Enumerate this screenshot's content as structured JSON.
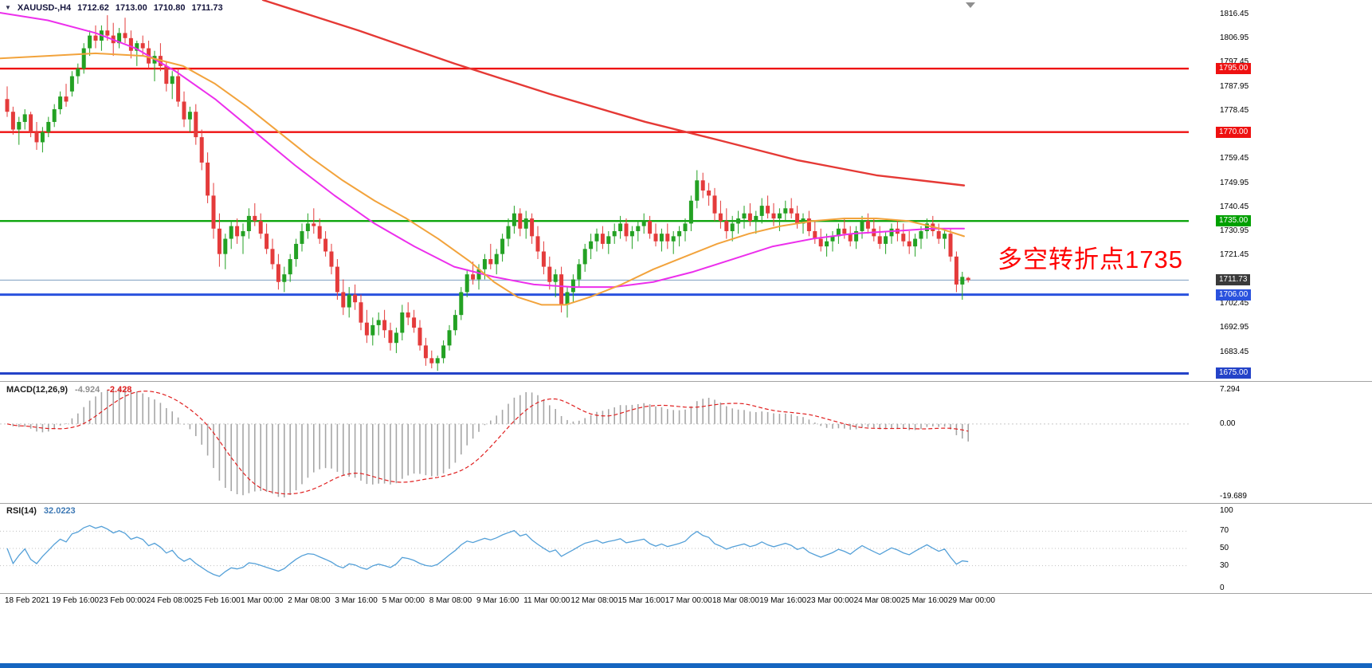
{
  "quote_bar": {
    "collapse_icon_glyph": "▼",
    "symbol": "XAUUSD-,H4",
    "open": "1712.62",
    "high": "1713.00",
    "low": "1710.80",
    "close": "1711.73"
  },
  "annotation": {
    "text": "多空转折点1735",
    "color": "#ff0000"
  },
  "indicators": {
    "macd": {
      "label": "MACD(12,26,9)",
      "value_main": "-4.924",
      "value_signal": "-2.428",
      "scale_labels": [
        "7.294",
        "0.00",
        "-19.689"
      ],
      "histogram_color": "#a6a6a6",
      "signal_color": "#e02020",
      "params": {
        "fast": 12,
        "slow": 26,
        "signal": 9
      }
    },
    "rsi": {
      "label": "RSI(14)",
      "value": "32.0223",
      "scale_labels": [
        "100",
        "70",
        "50",
        "30",
        "0"
      ],
      "levels": [
        70,
        50,
        30
      ],
      "line_color": "#54a0d8",
      "period": 14
    }
  },
  "price_axis": {
    "tick_labels": [
      "1816.45",
      "1806.95",
      "1797.45",
      "1787.95",
      "1778.45",
      "1768.95",
      "1759.45",
      "1749.95",
      "1740.45",
      "1730.95",
      "1721.45",
      "1711.95",
      "1702.45",
      "1692.95",
      "1683.45"
    ]
  },
  "chart_data": {
    "type": "candlestick",
    "symbol": "XAUUSD-",
    "timeframe": "H4",
    "ylim": [
      1672,
      1822
    ],
    "candles_per_label": 8,
    "up_color": "#23a123",
    "down_color": "#e43b3b",
    "x_labels": [
      "18 Feb 2021",
      "19 Feb 16:00",
      "23 Feb 00:00",
      "24 Feb 08:00",
      "25 Feb 16:00",
      "1 Mar 00:00",
      "2 Mar 08:00",
      "3 Mar 16:00",
      "5 Mar 00:00",
      "8 Mar 08:00",
      "9 Mar 16:00",
      "11 Mar 00:00",
      "12 Mar 08:00",
      "15 Mar 16:00",
      "17 Mar 00:00",
      "18 Mar 08:00",
      "19 Mar 16:00",
      "23 Mar 00:00",
      "24 Mar 08:00",
      "25 Mar 16:00",
      "29 Mar 00:00"
    ],
    "ohlc": [
      [
        1783,
        1788,
        1776,
        1778
      ],
      [
        1778,
        1780,
        1769,
        1771
      ],
      [
        1771,
        1776,
        1765,
        1774
      ],
      [
        1774,
        1779,
        1771,
        1777
      ],
      [
        1777,
        1778,
        1768,
        1770
      ],
      [
        1770,
        1774,
        1763,
        1766
      ],
      [
        1766,
        1772,
        1762,
        1770
      ],
      [
        1770,
        1776,
        1768,
        1774
      ],
      [
        1774,
        1781,
        1772,
        1779
      ],
      [
        1779,
        1786,
        1777,
        1784
      ],
      [
        1784,
        1789,
        1780,
        1782
      ],
      [
        1786,
        1794,
        1784,
        1792
      ],
      [
        1792,
        1797,
        1789,
        1795
      ],
      [
        1795,
        1805,
        1793,
        1803
      ],
      [
        1803,
        1810,
        1800,
        1808
      ],
      [
        1808,
        1812,
        1803,
        1806
      ],
      [
        1806,
        1812,
        1802,
        1810
      ],
      [
        1810,
        1816,
        1806,
        1808
      ],
      [
        1808,
        1813,
        1800,
        1805
      ],
      [
        1805,
        1811,
        1803,
        1809
      ],
      [
        1809,
        1815,
        1805,
        1807
      ],
      [
        1807,
        1810,
        1799,
        1802
      ],
      [
        1802,
        1806,
        1796,
        1805
      ],
      [
        1805,
        1808,
        1800,
        1803
      ],
      [
        1803,
        1806,
        1795,
        1797
      ],
      [
        1797,
        1802,
        1790,
        1800
      ],
      [
        1800,
        1805,
        1794,
        1796
      ],
      [
        1796,
        1798,
        1786,
        1789
      ],
      [
        1789,
        1794,
        1783,
        1792
      ],
      [
        1792,
        1795,
        1780,
        1782
      ],
      [
        1782,
        1786,
        1772,
        1775
      ],
      [
        1775,
        1780,
        1770,
        1778
      ],
      [
        1778,
        1781,
        1765,
        1768
      ],
      [
        1768,
        1771,
        1755,
        1758
      ],
      [
        1758,
        1762,
        1742,
        1745
      ],
      [
        1745,
        1750,
        1728,
        1732
      ],
      [
        1732,
        1738,
        1717,
        1722
      ],
      [
        1722,
        1730,
        1716,
        1728
      ],
      [
        1728,
        1735,
        1724,
        1733
      ],
      [
        1733,
        1736,
        1726,
        1729
      ],
      [
        1729,
        1734,
        1722,
        1731
      ],
      [
        1731,
        1740,
        1728,
        1737
      ],
      [
        1737,
        1742,
        1733,
        1735
      ],
      [
        1735,
        1738,
        1728,
        1730
      ],
      [
        1730,
        1734,
        1722,
        1724
      ],
      [
        1724,
        1728,
        1716,
        1718
      ],
      [
        1718,
        1722,
        1708,
        1711
      ],
      [
        1711,
        1717,
        1707,
        1714
      ],
      [
        1714,
        1722,
        1711,
        1720
      ],
      [
        1720,
        1728,
        1717,
        1726
      ],
      [
        1726,
        1734,
        1723,
        1731
      ],
      [
        1731,
        1738,
        1728,
        1734
      ],
      [
        1734,
        1740,
        1730,
        1733
      ],
      [
        1733,
        1736,
        1726,
        1728
      ],
      [
        1728,
        1731,
        1721,
        1723
      ],
      [
        1723,
        1726,
        1714,
        1717
      ],
      [
        1717,
        1720,
        1704,
        1707
      ],
      [
        1707,
        1712,
        1698,
        1701
      ],
      [
        1701,
        1709,
        1697,
        1706
      ],
      [
        1706,
        1710,
        1700,
        1703
      ],
      [
        1703,
        1706,
        1692,
        1695
      ],
      [
        1695,
        1700,
        1687,
        1690
      ],
      [
        1690,
        1697,
        1686,
        1694
      ],
      [
        1694,
        1699,
        1690,
        1696
      ],
      [
        1696,
        1700,
        1689,
        1692
      ],
      [
        1692,
        1695,
        1684,
        1687
      ],
      [
        1687,
        1693,
        1683,
        1691
      ],
      [
        1691,
        1702,
        1688,
        1699
      ],
      [
        1699,
        1703,
        1694,
        1697
      ],
      [
        1697,
        1700,
        1691,
        1693
      ],
      [
        1693,
        1696,
        1684,
        1686
      ],
      [
        1686,
        1689,
        1678,
        1681
      ],
      [
        1681,
        1684,
        1677,
        1679
      ],
      [
        1679,
        1682,
        1676,
        1681
      ],
      [
        1681,
        1688,
        1679,
        1686
      ],
      [
        1686,
        1694,
        1684,
        1692
      ],
      [
        1692,
        1700,
        1690,
        1698
      ],
      [
        1698,
        1709,
        1696,
        1707
      ],
      [
        1707,
        1716,
        1705,
        1714
      ],
      [
        1714,
        1719,
        1710,
        1712
      ],
      [
        1712,
        1718,
        1708,
        1716
      ],
      [
        1716,
        1722,
        1712,
        1720
      ],
      [
        1720,
        1726,
        1716,
        1718
      ],
      [
        1718,
        1724,
        1714,
        1722
      ],
      [
        1722,
        1730,
        1719,
        1728
      ],
      [
        1728,
        1736,
        1725,
        1733
      ],
      [
        1733,
        1741,
        1730,
        1738
      ],
      [
        1738,
        1740,
        1729,
        1732
      ],
      [
        1732,
        1739,
        1728,
        1736
      ],
      [
        1736,
        1738,
        1726,
        1729
      ],
      [
        1729,
        1733,
        1720,
        1723
      ],
      [
        1723,
        1727,
        1714,
        1717
      ],
      [
        1717,
        1721,
        1708,
        1711
      ],
      [
        1711,
        1716,
        1705,
        1714
      ],
      [
        1714,
        1717,
        1699,
        1702
      ],
      [
        1702,
        1709,
        1697,
        1707
      ],
      [
        1707,
        1714,
        1703,
        1712
      ],
      [
        1712,
        1720,
        1709,
        1718
      ],
      [
        1718,
        1726,
        1715,
        1724
      ],
      [
        1724,
        1730,
        1720,
        1727
      ],
      [
        1727,
        1732,
        1723,
        1730
      ],
      [
        1730,
        1733,
        1724,
        1726
      ],
      [
        1726,
        1731,
        1722,
        1729
      ],
      [
        1729,
        1734,
        1726,
        1731
      ],
      [
        1731,
        1737,
        1728,
        1734
      ],
      [
        1734,
        1736,
        1727,
        1729
      ],
      [
        1729,
        1733,
        1724,
        1731
      ],
      [
        1731,
        1735,
        1727,
        1733
      ],
      [
        1733,
        1738,
        1730,
        1735
      ],
      [
        1735,
        1737,
        1728,
        1730
      ],
      [
        1730,
        1734,
        1725,
        1727
      ],
      [
        1727,
        1732,
        1723,
        1730
      ],
      [
        1730,
        1734,
        1724,
        1727
      ],
      [
        1727,
        1731,
        1722,
        1729
      ],
      [
        1729,
        1733,
        1725,
        1731
      ],
      [
        1731,
        1736,
        1727,
        1734
      ],
      [
        1734,
        1745,
        1731,
        1743
      ],
      [
        1743,
        1755,
        1740,
        1751
      ],
      [
        1751,
        1754,
        1744,
        1747
      ],
      [
        1747,
        1750,
        1741,
        1745
      ],
      [
        1745,
        1748,
        1735,
        1738
      ],
      [
        1738,
        1743,
        1732,
        1735
      ],
      [
        1735,
        1740,
        1728,
        1731
      ],
      [
        1731,
        1737,
        1727,
        1734
      ],
      [
        1734,
        1739,
        1730,
        1736
      ],
      [
        1736,
        1741,
        1732,
        1738
      ],
      [
        1738,
        1742,
        1733,
        1735
      ],
      [
        1735,
        1739,
        1730,
        1737
      ],
      [
        1737,
        1744,
        1734,
        1741
      ],
      [
        1741,
        1745,
        1736,
        1738
      ],
      [
        1738,
        1742,
        1733,
        1736
      ],
      [
        1736,
        1740,
        1731,
        1738
      ],
      [
        1738,
        1743,
        1735,
        1740
      ],
      [
        1740,
        1744,
        1736,
        1738
      ],
      [
        1738,
        1741,
        1732,
        1734
      ],
      [
        1734,
        1738,
        1730,
        1736
      ],
      [
        1736,
        1739,
        1729,
        1731
      ],
      [
        1731,
        1735,
        1726,
        1728
      ],
      [
        1728,
        1732,
        1723,
        1725
      ],
      [
        1725,
        1730,
        1721,
        1727
      ],
      [
        1727,
        1731,
        1723,
        1729
      ],
      [
        1729,
        1734,
        1726,
        1732
      ],
      [
        1732,
        1736,
        1728,
        1730
      ],
      [
        1730,
        1733,
        1725,
        1727
      ],
      [
        1727,
        1733,
        1724,
        1731
      ],
      [
        1731,
        1737,
        1728,
        1735
      ],
      [
        1735,
        1738,
        1730,
        1732
      ],
      [
        1732,
        1736,
        1727,
        1729
      ],
      [
        1729,
        1733,
        1724,
        1726
      ],
      [
        1726,
        1731,
        1722,
        1729
      ],
      [
        1729,
        1734,
        1726,
        1732
      ],
      [
        1732,
        1735,
        1727,
        1730
      ],
      [
        1730,
        1734,
        1725,
        1727
      ],
      [
        1727,
        1731,
        1722,
        1725
      ],
      [
        1725,
        1730,
        1721,
        1728
      ],
      [
        1728,
        1733,
        1724,
        1731
      ],
      [
        1731,
        1736,
        1728,
        1734
      ],
      [
        1734,
        1737,
        1729,
        1731
      ],
      [
        1731,
        1734,
        1726,
        1728
      ],
      [
        1728,
        1732,
        1724,
        1730
      ],
      [
        1730,
        1732,
        1719,
        1721
      ],
      [
        1721,
        1723,
        1707,
        1710
      ],
      [
        1710,
        1715,
        1704,
        1713
      ],
      [
        1712.62,
        1713,
        1710.8,
        1711.73
      ]
    ],
    "hlines": [
      {
        "price": 1795.0,
        "label": "1795.00",
        "color": "#ee1111",
        "width": 2.4
      },
      {
        "price": 1770.0,
        "label": "1770.00",
        "color": "#ee1111",
        "width": 2.4
      },
      {
        "price": 1735.0,
        "label": "1735.00",
        "color": "#00a000",
        "width": 2.2
      },
      {
        "price": 1706.0,
        "label": "1706.00",
        "color": "#2a52de",
        "width": 3
      },
      {
        "price": 1675.0,
        "label": "1675.00",
        "color": "#2443c8",
        "width": 3
      }
    ],
    "bid_line": {
      "price": 1711.73,
      "label": "1711.73",
      "line_color": "#7d9ec0",
      "badge_color": "#3a3a3a"
    },
    "moving_averages": [
      {
        "name": "ma-red",
        "color": "#e53935",
        "width": 2.4,
        "points": [
          [
            330,
            1822
          ],
          [
            450,
            1810
          ],
          [
            570,
            1797
          ],
          [
            690,
            1785
          ],
          [
            810,
            1774
          ],
          [
            900,
            1767
          ],
          [
            1000,
            1759
          ],
          [
            1100,
            1753
          ],
          [
            1210,
            1749
          ]
        ]
      },
      {
        "name": "ma-magenta",
        "color": "#ec2fec",
        "width": 2,
        "points": [
          [
            0,
            1817
          ],
          [
            60,
            1814
          ],
          [
            120,
            1809
          ],
          [
            170,
            1803
          ],
          [
            220,
            1794
          ],
          [
            270,
            1783
          ],
          [
            320,
            1770
          ],
          [
            370,
            1757
          ],
          [
            420,
            1745
          ],
          [
            470,
            1734
          ],
          [
            520,
            1725
          ],
          [
            570,
            1717
          ],
          [
            620,
            1713
          ],
          [
            670,
            1710
          ],
          [
            720,
            1709
          ],
          [
            770,
            1709
          ],
          [
            820,
            1711
          ],
          [
            870,
            1715
          ],
          [
            920,
            1720
          ],
          [
            970,
            1725
          ],
          [
            1020,
            1728
          ],
          [
            1070,
            1730
          ],
          [
            1120,
            1731
          ],
          [
            1170,
            1732
          ],
          [
            1210,
            1732
          ]
        ]
      },
      {
        "name": "ma-orange",
        "color": "#f2a33c",
        "width": 2,
        "points": [
          [
            0,
            1799
          ],
          [
            60,
            1800
          ],
          [
            120,
            1801
          ],
          [
            180,
            1800
          ],
          [
            230,
            1796
          ],
          [
            270,
            1789
          ],
          [
            310,
            1780
          ],
          [
            350,
            1770
          ],
          [
            390,
            1760
          ],
          [
            430,
            1751
          ],
          [
            470,
            1743
          ],
          [
            510,
            1736
          ],
          [
            550,
            1728
          ],
          [
            590,
            1719
          ],
          [
            620,
            1711
          ],
          [
            650,
            1705
          ],
          [
            680,
            1702
          ],
          [
            710,
            1702
          ],
          [
            740,
            1705
          ],
          [
            780,
            1710
          ],
          [
            820,
            1716
          ],
          [
            860,
            1721
          ],
          [
            900,
            1726
          ],
          [
            940,
            1730
          ],
          [
            980,
            1733
          ],
          [
            1020,
            1735
          ],
          [
            1060,
            1736
          ],
          [
            1100,
            1736
          ],
          [
            1140,
            1735
          ],
          [
            1180,
            1732
          ],
          [
            1210,
            1729
          ]
        ]
      }
    ]
  },
  "icons": {
    "chart_shift_glyph": "▼"
  }
}
